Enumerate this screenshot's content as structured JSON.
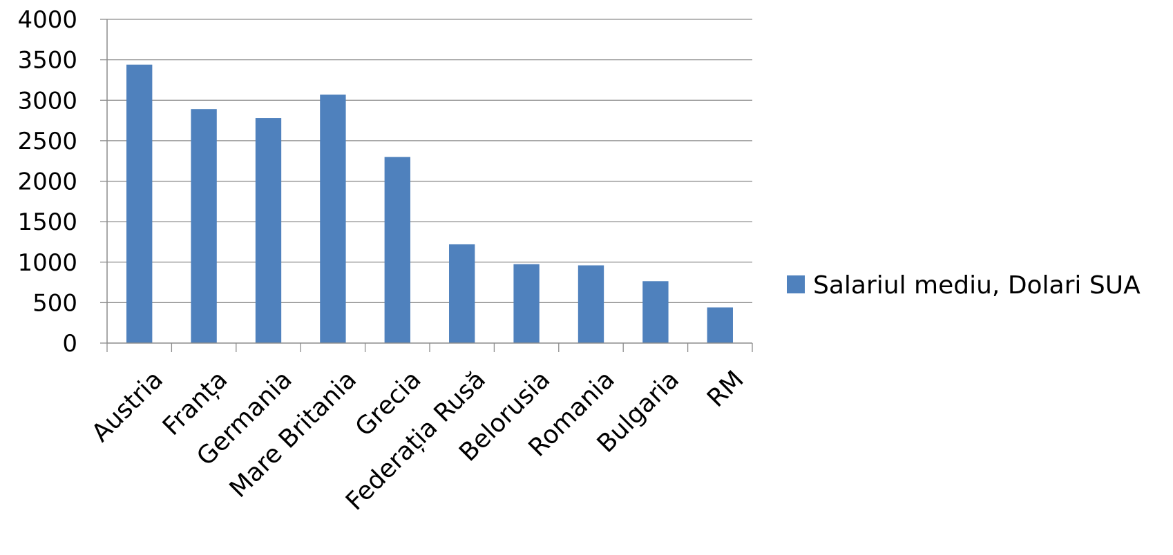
{
  "chart_data": {
    "type": "bar",
    "categories": [
      "Austria",
      "Franța",
      "Germania",
      "Mare Britania",
      "Grecia",
      "Federația Rusă",
      "Belorusia",
      "Romania",
      "Bulgaria",
      "RM"
    ],
    "series": [
      {
        "name": "Salariul mediu, Dolari SUA",
        "values": [
          3440,
          2890,
          2780,
          3070,
          2300,
          1220,
          975,
          960,
          765,
          440
        ],
        "color": "#4f81bd"
      }
    ],
    "yticks": [
      "0",
      "500",
      "1000",
      "1500",
      "2000",
      "2500",
      "3000",
      "3500",
      "4000"
    ],
    "ylim": [
      0,
      4000
    ],
    "grid": true,
    "legend_position": "right",
    "title": "",
    "xlabel": "",
    "ylabel": ""
  }
}
